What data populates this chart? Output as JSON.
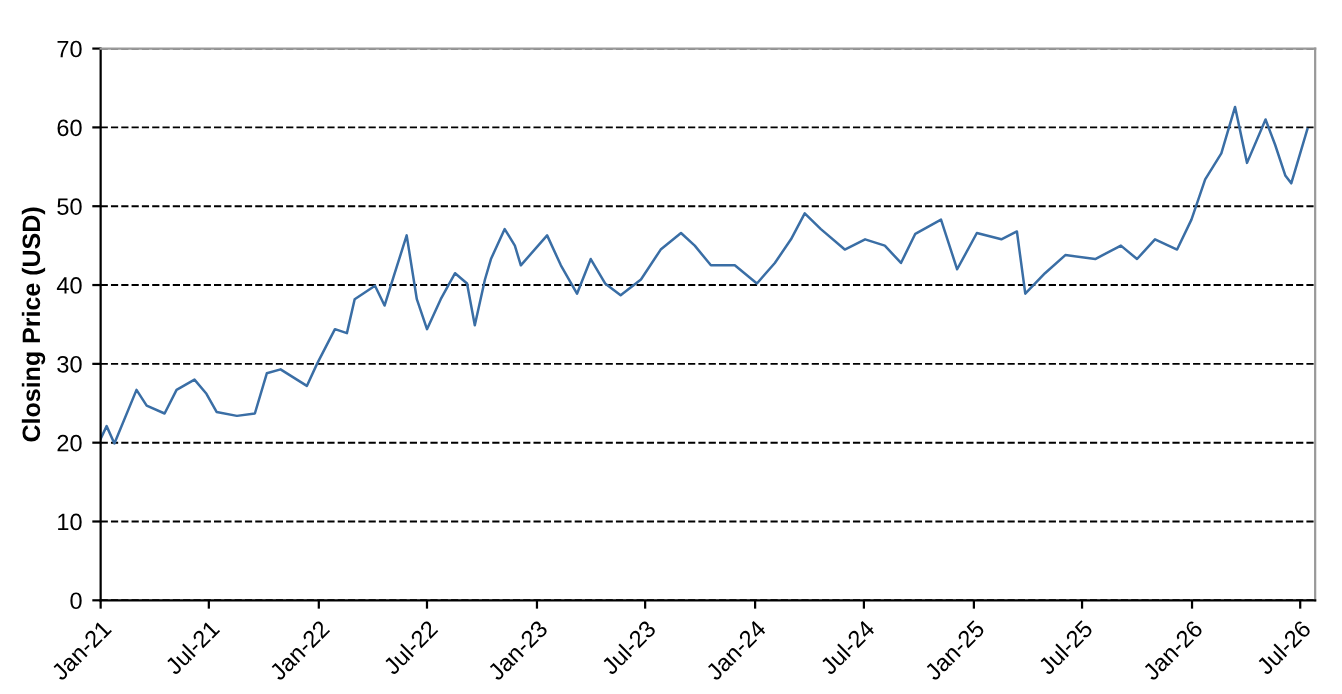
{
  "chart_data": {
    "type": "line",
    "ylabel": "Closing Price (USD)",
    "x": [
      "2021-01-01",
      "2021-01-11",
      "2021-01-24",
      "2021-03-02",
      "2021-03-19",
      "2021-04-18",
      "2021-05-08",
      "2021-06-07",
      "2021-06-27",
      "2021-07-14",
      "2021-08-17",
      "2021-09-16",
      "2021-10-06",
      "2021-10-29",
      "2021-12-12",
      "2021-12-29",
      "2022-01-28",
      "2022-02-17",
      "2022-03-02",
      "2022-04-05",
      "2022-04-21",
      "2022-05-08",
      "2022-05-28",
      "2022-06-14",
      "2022-07-01",
      "2022-07-24",
      "2022-08-17",
      "2022-09-06",
      "2022-09-19",
      "2022-10-06",
      "2022-10-16",
      "2022-11-08",
      "2022-11-25",
      "2022-12-05",
      "2023-01-18",
      "2023-02-10",
      "2023-03-09",
      "2023-04-01",
      "2023-04-25",
      "2023-05-21",
      "2023-06-24",
      "2023-07-27",
      "2023-08-30",
      "2023-09-22",
      "2023-10-19",
      "2023-11-28",
      "2024-01-04",
      "2024-02-03",
      "2024-03-01",
      "2024-03-24",
      "2024-04-20",
      "2024-05-30",
      "2024-07-03",
      "2024-08-05",
      "2024-09-01",
      "2024-09-25",
      "2024-11-07",
      "2024-12-04",
      "2025-01-06",
      "2025-02-16",
      "2025-03-14",
      "2025-03-28",
      "2025-04-30",
      "2025-06-03",
      "2025-07-23",
      "2025-09-04",
      "2025-10-01",
      "2025-10-31",
      "2025-12-07",
      "2025-12-31",
      "2026-01-23",
      "2026-02-19",
      "2026-03-14",
      "2026-04-03",
      "2026-05-04",
      "2026-05-20",
      "2026-06-06",
      "2026-06-16",
      "2026-07-13"
    ],
    "series": [
      {
        "color": "#3a6ea5",
        "values": [
          20.5,
          22.1,
          19.9,
          26.7,
          24.7,
          23.7,
          26.7,
          28,
          26.2,
          23.9,
          23.4,
          23.7,
          28.8,
          29.3,
          27.2,
          30,
          34.4,
          33.9,
          38.2,
          39.9,
          37.4,
          41.5,
          46.3,
          38.2,
          34.4,
          38.2,
          41.5,
          40.2,
          34.9,
          40.7,
          43.3,
          47.1,
          45,
          42.5,
          46.3,
          42.5,
          38.9,
          43.3,
          40.2,
          38.7,
          40.7,
          44.5,
          46.6,
          45,
          42.5,
          42.5,
          40.2,
          42.8,
          45.8,
          49.1,
          47.1,
          44.5,
          45.8,
          45,
          42.8,
          46.5,
          48.3,
          42,
          46.6,
          45.8,
          46.8,
          38.9,
          41.5,
          43.8,
          43.3,
          45,
          43.3,
          45.8,
          44.5,
          48.3,
          53.4,
          56.7,
          62.6,
          55.5,
          61,
          57.8,
          53.9,
          52.9,
          59.8
        ]
      }
    ],
    "xlim": [
      "2021-01-01",
      "2026-07-26"
    ],
    "xticks": [
      {
        "value": "2021-01-01",
        "label": "Jan-21"
      },
      {
        "value": "2021-07-01",
        "label": "Jul-21"
      },
      {
        "value": "2022-01-01",
        "label": "Jan-22"
      },
      {
        "value": "2022-07-01",
        "label": "Jul-22"
      },
      {
        "value": "2023-01-01",
        "label": "Jan-23"
      },
      {
        "value": "2023-07-01",
        "label": "Jul-23"
      },
      {
        "value": "2024-01-01",
        "label": "Jan-24"
      },
      {
        "value": "2024-07-01",
        "label": "Jul-24"
      },
      {
        "value": "2025-01-01",
        "label": "Jan-25"
      },
      {
        "value": "2025-07-01",
        "label": "Jul-25"
      },
      {
        "value": "2026-01-01",
        "label": "Jan-26"
      },
      {
        "value": "2026-07-01",
        "label": "Jul-26"
      }
    ],
    "ylim": [
      0,
      70
    ],
    "yticks": [
      0,
      10,
      20,
      30,
      40,
      50,
      60,
      70
    ],
    "grid": "y",
    "line_style": "solid",
    "legend": false
  }
}
